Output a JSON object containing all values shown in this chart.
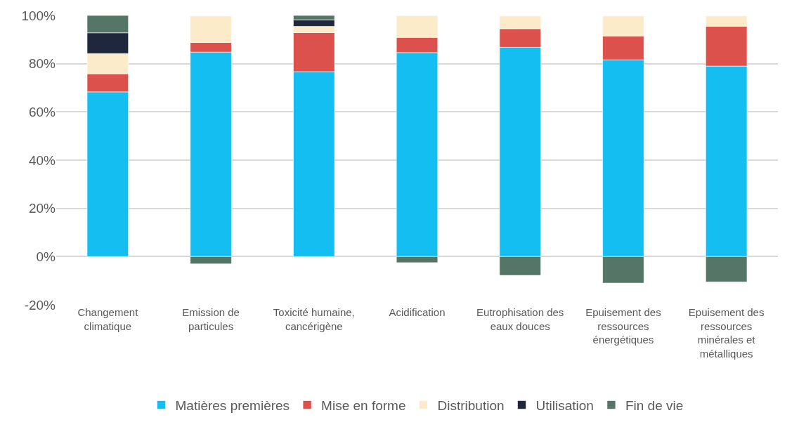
{
  "chart_data": {
    "type": "bar",
    "stacked": true,
    "categories": [
      "Changement climatique",
      "Emission de particules",
      "Toxicité humaine, cancérigène",
      "Acidification",
      "Eutrophisation des eaux douces",
      "Epuisement des ressources énergétiques",
      "Epuisement des ressources minérales et métalliques"
    ],
    "series": [
      {
        "name": "Matières premières",
        "color": "#15bef0",
        "values": [
          68.3,
          84.8,
          76.7,
          84.6,
          86.8,
          81.6,
          79.0
        ]
      },
      {
        "name": "Mise en forme",
        "color": "#dc514c",
        "values": [
          7.5,
          4.0,
          16.2,
          6.3,
          7.7,
          9.9,
          16.5
        ]
      },
      {
        "name": "Distribution",
        "color": "#fbebc9",
        "values": [
          8.4,
          11.0,
          2.6,
          9.0,
          5.3,
          8.3,
          4.3
        ]
      },
      {
        "name": "Utilisation",
        "color": "#1f273c",
        "values": [
          8.6,
          null,
          2.7,
          null,
          null,
          null,
          null
        ]
      },
      {
        "name": "Fin de vie",
        "color": "#557566",
        "values": [
          7.2,
          -3.0,
          1.8,
          -2.5,
          -7.8,
          -11.0,
          -10.5
        ]
      }
    ],
    "ylim": [
      -20,
      100
    ],
    "yticks": [
      {
        "value": -20,
        "label": "-20%"
      },
      {
        "value": 0,
        "label": "0%"
      },
      {
        "value": 20,
        "label": "20%"
      },
      {
        "value": 40,
        "label": "40%"
      },
      {
        "value": 60,
        "label": "60%"
      },
      {
        "value": 80,
        "label": "80%"
      },
      {
        "value": 100,
        "label": "100%"
      }
    ],
    "grid": "y",
    "legend": "bottom"
  }
}
